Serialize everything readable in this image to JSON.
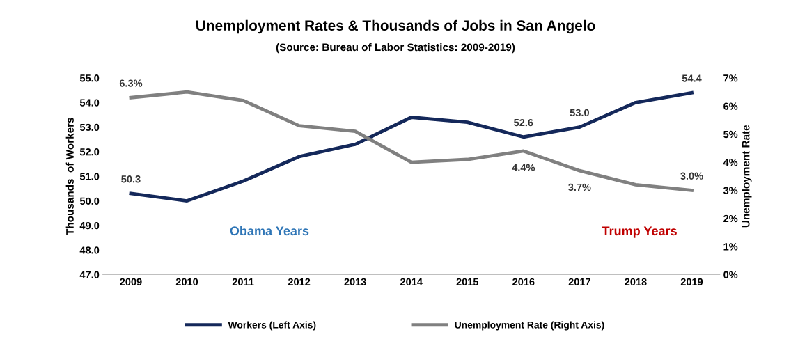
{
  "chart_data": {
    "type": "line",
    "title": "Unemployment Rates & Thousands of Jobs in San Angelo",
    "subtitle": "(Source: Bureau of Labor Statistics: 2009-2019)",
    "ylabel": "Thousands  of Workers",
    "y2label": "Unemployment Rate",
    "categories": [
      "2009",
      "2010",
      "2011",
      "2012",
      "2013",
      "2014",
      "2015",
      "2016",
      "2017",
      "2018",
      "2019"
    ],
    "series": [
      {
        "name": "Workers (Left Axis)",
        "color": "#14285a",
        "values": [
          50.3,
          50.0,
          50.8,
          51.8,
          52.3,
          53.4,
          53.2,
          52.6,
          53.0,
          54.0,
          54.4
        ],
        "value_labels": [
          "50.3",
          null,
          null,
          null,
          null,
          null,
          null,
          "52.6",
          "53.0",
          null,
          "54.4"
        ]
      },
      {
        "name": "Unemployment Rate (Right Axis)",
        "color": "#808080",
        "axis": "y2",
        "values": [
          6.3,
          6.5,
          6.2,
          5.3,
          5.1,
          4.0,
          4.1,
          4.4,
          3.7,
          3.2,
          3.0
        ],
        "value_labels": [
          "6.3%",
          null,
          null,
          null,
          null,
          null,
          null,
          "4.4%",
          "3.7%",
          null,
          "3.0%"
        ]
      }
    ],
    "ylim": [
      47,
      55
    ],
    "yticks": [
      {
        "value": 47,
        "label": "47.0"
      },
      {
        "value": 48,
        "label": "48.0"
      },
      {
        "value": 49,
        "label": "49.0"
      },
      {
        "value": 50,
        "label": "50.0"
      },
      {
        "value": 51,
        "label": "51.0"
      },
      {
        "value": 52,
        "label": "52.0"
      },
      {
        "value": 53,
        "label": "53.0"
      },
      {
        "value": 54,
        "label": "54.0"
      },
      {
        "value": 55,
        "label": "55.0"
      }
    ],
    "y2lim": [
      0,
      7
    ],
    "y2ticks": [
      {
        "value": 0,
        "label": "0%"
      },
      {
        "value": 1,
        "label": "1%"
      },
      {
        "value": 2,
        "label": "2%"
      },
      {
        "value": 3,
        "label": "3%"
      },
      {
        "value": 4,
        "label": "4%"
      },
      {
        "value": 5,
        "label": "5%"
      },
      {
        "value": 6,
        "label": "6%"
      },
      {
        "value": 7,
        "label": "7%"
      }
    ],
    "annotations": [
      "Obama Years",
      "Trump Years"
    ],
    "legend": "bottom",
    "grid": false,
    "marker": "none",
    "line_style": "solid"
  }
}
